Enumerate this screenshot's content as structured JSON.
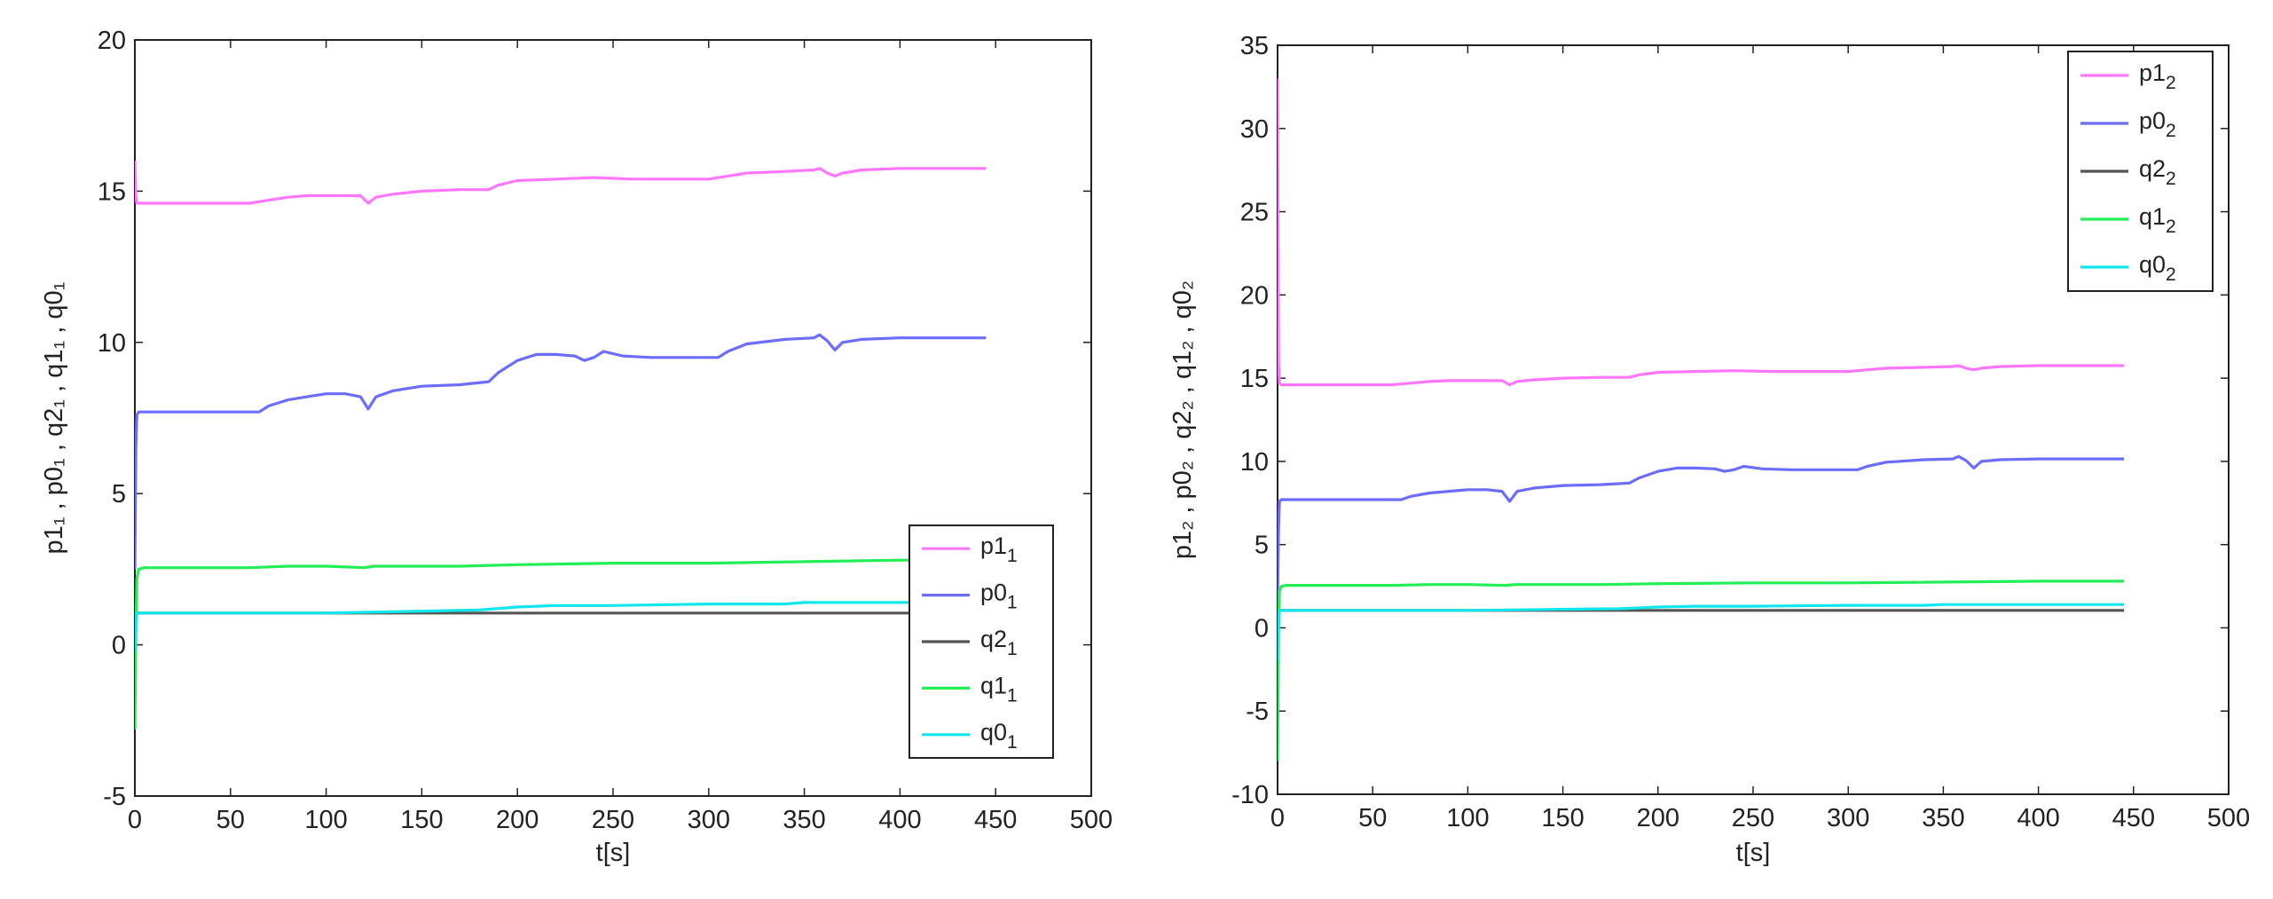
{
  "chart_data": [
    {
      "type": "line",
      "title": "",
      "xlabel": "t[s]",
      "ylabel": "p1₁ , p0₁ , q2₁ , q1₁ , q0₁",
      "xlim": [
        0,
        500
      ],
      "ylim": [
        -5,
        20
      ],
      "xticks": [
        0,
        50,
        100,
        150,
        200,
        250,
        300,
        350,
        400,
        450,
        500
      ],
      "yticks": [
        -5,
        0,
        5,
        10,
        15,
        20
      ],
      "xtick_labels": [
        "0",
        "50",
        "100",
        "150",
        "200",
        "250",
        "300",
        "350",
        "400",
        "450",
        "500"
      ],
      "ytick_labels": [
        "-5",
        "0",
        "5",
        "10",
        "15",
        "20"
      ],
      "grid": false,
      "legend_position": "bottom-right",
      "series": [
        {
          "name": "p1₁",
          "color": "#ff77ff",
          "x": [
            0,
            0.5,
            1,
            2,
            5,
            60,
            70,
            80,
            90,
            100,
            110,
            118,
            122,
            126,
            135,
            150,
            170,
            185,
            190,
            200,
            220,
            240,
            260,
            280,
            300,
            310,
            320,
            340,
            355,
            358,
            362,
            366,
            370,
            380,
            400,
            420,
            445
          ],
          "y": [
            16,
            14.8,
            14.6,
            14.6,
            14.6,
            14.6,
            14.7,
            14.8,
            14.85,
            14.85,
            14.85,
            14.85,
            14.6,
            14.8,
            14.9,
            15,
            15.05,
            15.05,
            15.2,
            15.35,
            15.4,
            15.45,
            15.4,
            15.4,
            15.4,
            15.5,
            15.6,
            15.65,
            15.7,
            15.75,
            15.6,
            15.5,
            15.6,
            15.7,
            15.75,
            15.75,
            15.75
          ]
        },
        {
          "name": "p0₁",
          "color": "#6c6cff",
          "x": [
            0,
            0.5,
            1,
            2,
            5,
            60,
            65,
            70,
            80,
            90,
            100,
            110,
            118,
            122,
            126,
            135,
            150,
            170,
            185,
            190,
            200,
            210,
            220,
            230,
            235,
            240,
            245,
            255,
            270,
            290,
            305,
            310,
            320,
            340,
            355,
            358,
            362,
            366,
            370,
            380,
            400,
            420,
            445
          ],
          "y": [
            2.5,
            6.5,
            7.6,
            7.7,
            7.7,
            7.7,
            7.7,
            7.9,
            8.1,
            8.2,
            8.3,
            8.3,
            8.2,
            7.8,
            8.2,
            8.4,
            8.55,
            8.6,
            8.7,
            9,
            9.4,
            9.6,
            9.6,
            9.55,
            9.4,
            9.5,
            9.7,
            9.55,
            9.5,
            9.5,
            9.5,
            9.7,
            9.95,
            10.1,
            10.15,
            10.25,
            10.05,
            9.75,
            10,
            10.1,
            10.15,
            10.15,
            10.15
          ]
        },
        {
          "name": "q2₁",
          "color": "#555555",
          "x": [
            0,
            1,
            2,
            80,
            120,
            130,
            200,
            300,
            445
          ],
          "y": [
            1.05,
            1.05,
            1.05,
            1.05,
            1.05,
            1.05,
            1.05,
            1.05,
            1.05
          ]
        },
        {
          "name": "q1₁",
          "color": "#22ee55",
          "x": [
            0,
            0.5,
            1,
            2,
            5,
            60,
            80,
            100,
            120,
            125,
            140,
            170,
            200,
            250,
            300,
            350,
            400,
            445
          ],
          "y": [
            -2.8,
            0.5,
            2.2,
            2.5,
            2.55,
            2.55,
            2.6,
            2.6,
            2.55,
            2.6,
            2.6,
            2.6,
            2.65,
            2.7,
            2.7,
            2.75,
            2.8,
            2.8
          ]
        },
        {
          "name": "q0₁",
          "color": "#11e6ee",
          "x": [
            0,
            0.5,
            1,
            2,
            5,
            60,
            100,
            140,
            180,
            200,
            220,
            250,
            300,
            340,
            350,
            400,
            445
          ],
          "y": [
            -0.2,
            0.8,
            1.05,
            1.05,
            1.05,
            1.05,
            1.05,
            1.1,
            1.15,
            1.25,
            1.3,
            1.3,
            1.35,
            1.35,
            1.4,
            1.4,
            1.4
          ]
        }
      ]
    },
    {
      "type": "line",
      "title": "",
      "xlabel": "t[s]",
      "ylabel": "p1₂ , p0₂ , q2₂ , q1₂ , q0₂",
      "xlim": [
        0,
        500
      ],
      "ylim": [
        -10,
        35
      ],
      "xticks": [
        0,
        50,
        100,
        150,
        200,
        250,
        300,
        350,
        400,
        450,
        500
      ],
      "yticks": [
        -10,
        -5,
        0,
        5,
        10,
        15,
        20,
        25,
        30,
        35
      ],
      "xtick_labels": [
        "0",
        "50",
        "100",
        "150",
        "200",
        "250",
        "300",
        "350",
        "400",
        "450",
        "500"
      ],
      "ytick_labels": [
        "-10",
        "-5",
        "0",
        "5",
        "10",
        "15",
        "20",
        "25",
        "30",
        "35"
      ],
      "grid": false,
      "legend_position": "top-right",
      "series": [
        {
          "name": "p1₂",
          "color": "#ff77ff",
          "x": [
            0,
            0.5,
            1,
            2,
            5,
            60,
            70,
            80,
            90,
            100,
            110,
            118,
            122,
            126,
            135,
            150,
            170,
            185,
            190,
            200,
            220,
            240,
            260,
            280,
            300,
            310,
            320,
            340,
            355,
            358,
            362,
            366,
            370,
            380,
            400,
            420,
            445
          ],
          "y": [
            33,
            16,
            14.7,
            14.6,
            14.6,
            14.6,
            14.7,
            14.8,
            14.85,
            14.85,
            14.85,
            14.85,
            14.6,
            14.8,
            14.9,
            15,
            15.05,
            15.05,
            15.2,
            15.35,
            15.4,
            15.45,
            15.4,
            15.4,
            15.4,
            15.5,
            15.6,
            15.65,
            15.7,
            15.75,
            15.6,
            15.5,
            15.6,
            15.7,
            15.75,
            15.75,
            15.75
          ]
        },
        {
          "name": "p0₂",
          "color": "#6c6cff",
          "x": [
            0,
            0.5,
            1,
            2,
            5,
            60,
            65,
            70,
            80,
            90,
            100,
            110,
            118,
            122,
            126,
            135,
            150,
            170,
            185,
            190,
            200,
            210,
            220,
            230,
            235,
            240,
            245,
            255,
            270,
            290,
            305,
            310,
            320,
            340,
            355,
            358,
            362,
            366,
            370,
            380,
            400,
            420,
            445
          ],
          "y": [
            1.5,
            6,
            7.6,
            7.7,
            7.7,
            7.7,
            7.7,
            7.9,
            8.1,
            8.2,
            8.3,
            8.3,
            8.2,
            7.6,
            8.2,
            8.4,
            8.55,
            8.6,
            8.7,
            9,
            9.4,
            9.6,
            9.6,
            9.55,
            9.4,
            9.5,
            9.7,
            9.55,
            9.5,
            9.5,
            9.5,
            9.7,
            9.95,
            10.1,
            10.15,
            10.3,
            10.05,
            9.6,
            10,
            10.1,
            10.15,
            10.15,
            10.15
          ]
        },
        {
          "name": "q2₂",
          "color": "#555555",
          "x": [
            0,
            1,
            2,
            75,
            120,
            200,
            300,
            445
          ],
          "y": [
            1.05,
            1.05,
            1.05,
            1.05,
            1.05,
            1.05,
            1.05,
            1.05
          ]
        },
        {
          "name": "q1₂",
          "color": "#22ee55",
          "x": [
            0,
            0.5,
            1,
            2,
            5,
            60,
            80,
            100,
            120,
            125,
            140,
            170,
            200,
            250,
            300,
            350,
            400,
            445
          ],
          "y": [
            -8,
            0,
            2.2,
            2.5,
            2.55,
            2.55,
            2.6,
            2.6,
            2.55,
            2.6,
            2.6,
            2.6,
            2.65,
            2.7,
            2.7,
            2.75,
            2.8,
            2.8
          ]
        },
        {
          "name": "q0₂",
          "color": "#11e6ee",
          "x": [
            0,
            0.5,
            1,
            2,
            5,
            60,
            100,
            140,
            180,
            200,
            220,
            250,
            300,
            340,
            350,
            400,
            445
          ],
          "y": [
            -2,
            0.5,
            1.05,
            1.05,
            1.05,
            1.05,
            1.05,
            1.1,
            1.15,
            1.25,
            1.3,
            1.3,
            1.35,
            1.35,
            1.4,
            1.4,
            1.4
          ]
        }
      ]
    }
  ]
}
